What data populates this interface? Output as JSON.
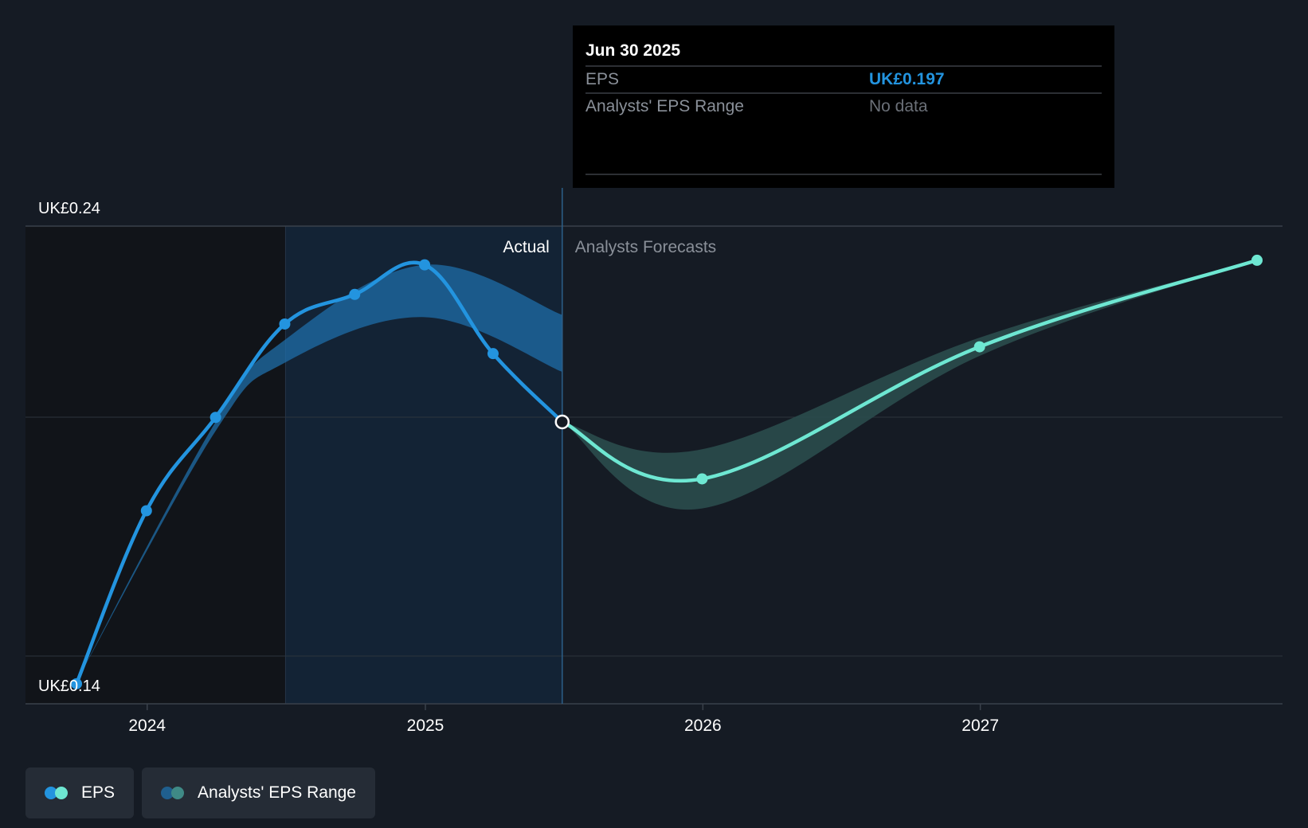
{
  "colors": {
    "background": "#151b24",
    "actual_line": "#2394df",
    "forecast_line": "#6ee7d2",
    "actual_band": "#1f6ea8",
    "forecast_band": "#2a4d4d",
    "grid": "#3a414b",
    "tooltip_bg": "#000000",
    "eps_value": "#2394df",
    "muted_text": "#8a9099",
    "nodata_text": "#6b7078"
  },
  "tooltip": {
    "date": "Jun 30 2025",
    "rows": [
      {
        "label": "EPS",
        "value": "UK£0.197"
      },
      {
        "label": "Analysts' EPS Range",
        "value": "No data"
      }
    ]
  },
  "section_labels": {
    "actual": "Actual",
    "forecast": "Analysts Forecasts"
  },
  "legend": [
    {
      "label": "EPS",
      "icon": "eps-legend-icon",
      "colors": [
        "#2394df",
        "#6ee7d2"
      ]
    },
    {
      "label": "Analysts' EPS Range",
      "icon": "range-legend-icon",
      "colors": [
        "#1f5f8e",
        "#3f8a86"
      ]
    }
  ],
  "chart_data": {
    "type": "line",
    "y_labels": [
      "UK£0.24",
      "UK£0.14"
    ],
    "ylim": [
      0.14,
      0.24
    ],
    "xlim": [
      "2023-09-30",
      "2027-12-31"
    ],
    "x_ticks": [
      "2024",
      "2025",
      "2026",
      "2027"
    ],
    "x_tick_dates": [
      "2024-01-01",
      "2025-01-01",
      "2026-01-01",
      "2027-01-01"
    ],
    "divider_date": "2025-06-30",
    "highlight_start_date": "2024-07-01",
    "grid": true,
    "legend_position": "bottom-left",
    "series": [
      {
        "name": "EPS",
        "kind": "actual",
        "x": [
          "2023-09-30",
          "2023-12-31",
          "2024-03-31",
          "2024-06-30",
          "2024-09-30",
          "2024-12-31",
          "2025-03-31",
          "2025-06-30"
        ],
        "y": [
          0.1395,
          0.1775,
          0.198,
          0.2185,
          0.225,
          0.2315,
          0.212,
          0.197
        ]
      },
      {
        "name": "EPS",
        "kind": "forecast",
        "x": [
          "2025-06-30",
          "2025-12-31",
          "2026-12-31",
          "2027-12-31"
        ],
        "y": [
          0.197,
          0.1845,
          0.2135,
          0.2325
        ]
      }
    ],
    "bands": [
      {
        "name": "Analysts' EPS Range",
        "kind": "actual",
        "x": [
          "2023-09-30",
          "2024-03-31",
          "2024-06-30",
          "2024-12-31",
          "2025-06-30"
        ],
        "low": [
          0.14,
          0.195,
          0.21,
          0.22,
          0.208
        ],
        "high": [
          0.14,
          0.197,
          0.215,
          0.2315,
          0.2205
        ]
      },
      {
        "name": "Analysts' EPS Range",
        "kind": "forecast",
        "x": [
          "2025-06-30",
          "2025-12-31",
          "2026-12-31",
          "2027-12-31"
        ],
        "low": [
          0.197,
          0.178,
          0.2115,
          0.2325
        ],
        "high": [
          0.197,
          0.191,
          0.2155,
          0.2325
        ]
      }
    ]
  }
}
